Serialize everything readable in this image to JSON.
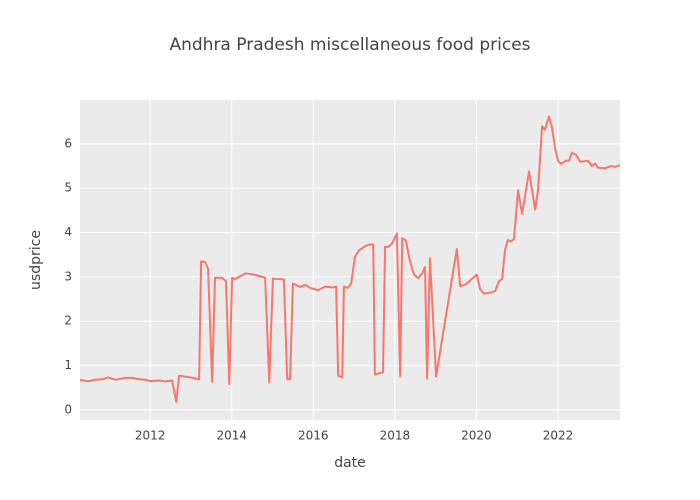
{
  "chart_data": {
    "type": "line",
    "title": "Andhra Pradesh miscellaneous food prices",
    "x_label": "date",
    "y_label": "usdprice",
    "x": [
      2010.28,
      2010.48,
      2010.65,
      2010.85,
      2010.97,
      2011.07,
      2011.17,
      2011.39,
      2011.58,
      2011.71,
      2011.88,
      2012.0,
      2012.25,
      2012.37,
      2012.54,
      2012.64,
      2012.71,
      2012.86,
      2013.05,
      2013.2,
      2013.25,
      2013.35,
      2013.42,
      2013.52,
      2013.59,
      2013.76,
      2013.86,
      2013.94,
      2014.01,
      2014.08,
      2014.35,
      2014.55,
      2014.82,
      2014.92,
      2015.01,
      2015.14,
      2015.28,
      2015.36,
      2015.43,
      2015.5,
      2015.68,
      2015.8,
      2015.92,
      2016.12,
      2016.29,
      2016.49,
      2016.56,
      2016.61,
      2016.71,
      2016.75,
      2016.85,
      2016.93,
      2017.02,
      2017.12,
      2017.29,
      2017.39,
      2017.47,
      2017.51,
      2017.61,
      2017.71,
      2017.76,
      2017.83,
      2017.93,
      2018.05,
      2018.13,
      2018.18,
      2018.27,
      2018.37,
      2018.47,
      2018.57,
      2018.67,
      2018.74,
      2018.79,
      2018.86,
      2019.01,
      2019.52,
      2019.6,
      2019.72,
      2020.01,
      2020.09,
      2020.19,
      2020.36,
      2020.46,
      2020.55,
      2020.63,
      2020.7,
      2020.77,
      2020.85,
      2020.92,
      2021.02,
      2021.12,
      2021.29,
      2021.44,
      2021.51,
      2021.61,
      2021.68,
      2021.78,
      2021.85,
      2021.93,
      2022.0,
      2022.07,
      2022.2,
      2022.27,
      2022.34,
      2022.44,
      2022.54,
      2022.74,
      2022.83,
      2022.91,
      2022.98,
      2023.15,
      2023.3,
      2023.4,
      2023.52
    ],
    "series": [
      {
        "color": "#f8766d",
        "values": [
          0.68,
          0.64,
          0.68,
          0.69,
          0.73,
          0.7,
          0.68,
          0.72,
          0.72,
          0.69,
          0.68,
          0.65,
          0.66,
          0.64,
          0.66,
          0.18,
          0.77,
          0.75,
          0.72,
          0.69,
          3.35,
          3.33,
          3.18,
          0.63,
          2.98,
          2.98,
          2.9,
          0.58,
          2.98,
          2.95,
          3.08,
          3.05,
          2.98,
          0.62,
          2.96,
          2.95,
          2.94,
          0.69,
          0.69,
          2.85,
          2.77,
          2.82,
          2.75,
          2.7,
          2.78,
          2.76,
          2.78,
          0.77,
          0.73,
          2.78,
          2.75,
          2.85,
          3.45,
          3.6,
          3.7,
          3.73,
          3.73,
          0.8,
          0.82,
          0.85,
          3.68,
          3.67,
          3.75,
          3.98,
          0.75,
          3.87,
          3.82,
          3.35,
          3.05,
          2.97,
          3.08,
          3.22,
          0.7,
          3.42,
          0.75,
          3.63,
          2.79,
          2.82,
          3.05,
          2.72,
          2.62,
          2.65,
          2.68,
          2.9,
          2.95,
          3.6,
          3.83,
          3.8,
          3.85,
          4.95,
          4.42,
          5.38,
          4.52,
          4.95,
          6.4,
          6.32,
          6.62,
          6.38,
          5.9,
          5.62,
          5.55,
          5.62,
          5.62,
          5.8,
          5.76,
          5.6,
          5.62,
          5.5,
          5.56,
          5.46,
          5.45,
          5.5,
          5.48,
          5.52
        ]
      }
    ],
    "xlim": [
      2010.28,
      2023.52
    ],
    "xticks": [
      2012,
      2014,
      2016,
      2018,
      2020,
      2022
    ],
    "ylim": [
      -0.23,
      6.99
    ],
    "yticks": [
      0,
      1,
      2,
      3,
      4,
      5,
      6
    ],
    "grid": true,
    "background": "#ebebeb"
  }
}
